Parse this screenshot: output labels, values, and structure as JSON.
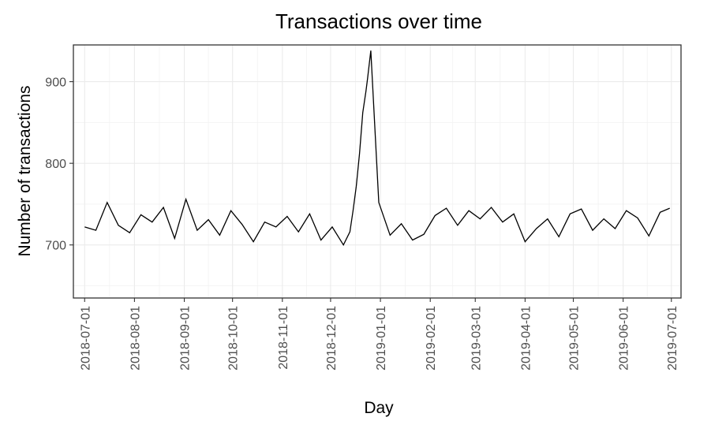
{
  "chart_data": {
    "type": "line",
    "title": "Transactions over time",
    "xlabel": "Day",
    "ylabel": "Number of transactions",
    "xlim": [
      "2018-06-24",
      "2019-07-07"
    ],
    "ylim": [
      635,
      945
    ],
    "grid": true,
    "x_ticks": [
      "2018-07-01",
      "2018-08-01",
      "2018-09-01",
      "2018-10-01",
      "2018-11-01",
      "2018-12-01",
      "2019-01-01",
      "2019-02-01",
      "2019-03-01",
      "2019-04-01",
      "2019-05-01",
      "2019-06-01",
      "2019-07-01"
    ],
    "y_ticks": [
      700,
      800,
      900
    ],
    "series": [
      {
        "x": [
          "2018-07-01",
          "2018-07-08",
          "2018-07-15",
          "2018-07-22",
          "2018-07-29",
          "2018-08-05",
          "2018-08-12",
          "2018-08-19",
          "2018-08-26",
          "2018-09-02",
          "2018-09-09",
          "2018-09-16",
          "2018-09-23",
          "2018-09-30",
          "2018-10-07",
          "2018-10-14",
          "2018-10-21",
          "2018-10-28",
          "2018-11-04",
          "2018-11-11",
          "2018-11-18",
          "2018-11-25",
          "2018-12-02",
          "2018-12-09",
          "2018-12-13",
          "2018-12-15",
          "2018-12-17",
          "2018-12-19",
          "2018-12-21",
          "2018-12-23",
          "2018-12-24",
          "2018-12-26",
          "2018-12-31",
          "2019-01-07",
          "2019-01-14",
          "2019-01-21",
          "2019-01-28",
          "2019-02-04",
          "2019-02-11",
          "2019-02-18",
          "2019-02-25",
          "2019-03-04",
          "2019-03-11",
          "2019-03-18",
          "2019-03-25",
          "2019-04-01",
          "2019-04-08",
          "2019-04-15",
          "2019-04-22",
          "2019-04-29",
          "2019-05-06",
          "2019-05-13",
          "2019-05-20",
          "2019-05-27",
          "2019-06-03",
          "2019-06-10",
          "2019-06-17",
          "2019-06-24",
          "2019-06-30"
        ],
        "values": [
          722,
          718,
          752,
          724,
          715,
          737,
          728,
          746,
          708,
          756,
          718,
          731,
          712,
          742,
          725,
          704,
          728,
          722,
          735,
          716,
          738,
          706,
          722,
          700,
          716,
          742,
          772,
          812,
          862,
          888,
          904,
          938,
          752,
          712,
          726,
          706,
          713,
          736,
          745,
          724,
          742,
          732,
          746,
          728,
          738,
          704,
          720,
          732,
          710,
          738,
          744,
          718,
          732,
          720,
          742,
          733,
          711,
          740,
          745
        ]
      }
    ]
  }
}
